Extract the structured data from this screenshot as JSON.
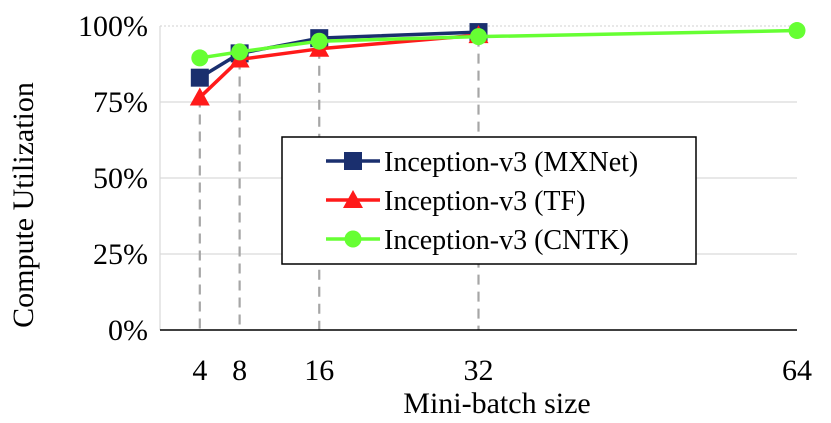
{
  "chart_data": {
    "type": "line",
    "title": "",
    "xlabel": "Mini-batch size",
    "ylabel": "Compute Utilization",
    "x": [
      4,
      8,
      16,
      32,
      64
    ],
    "x_tick_labels": [
      "4",
      "8",
      "16",
      "32",
      "64"
    ],
    "xlim": [
      0,
      64
    ],
    "ylim": [
      0,
      100
    ],
    "y_ticks": [
      0,
      25,
      50,
      75,
      100
    ],
    "y_tick_labels": [
      "0%",
      "25%",
      "50%",
      "75%",
      "100%"
    ],
    "grid": true,
    "legend_position": "center-right",
    "dashed_reference_x": [
      4,
      8,
      16,
      32
    ],
    "series": [
      {
        "name": "Inception-v3 (MXNet)",
        "color": "#1a2f6e",
        "marker": "square",
        "x": [
          4,
          8,
          16,
          32
        ],
        "values": [
          83,
          91,
          96,
          98
        ]
      },
      {
        "name": "Inception-v3 (TF)",
        "color": "#ff1a1a",
        "marker": "triangle",
        "x": [
          4,
          8,
          16,
          32
        ],
        "values": [
          76.5,
          89,
          92.5,
          97
        ]
      },
      {
        "name": "Inception-v3 (CNTK)",
        "color": "#66ff33",
        "marker": "circle",
        "x": [
          4,
          8,
          16,
          32,
          64
        ],
        "values": [
          89.5,
          91.5,
          95,
          96.5,
          98.5
        ]
      }
    ]
  }
}
